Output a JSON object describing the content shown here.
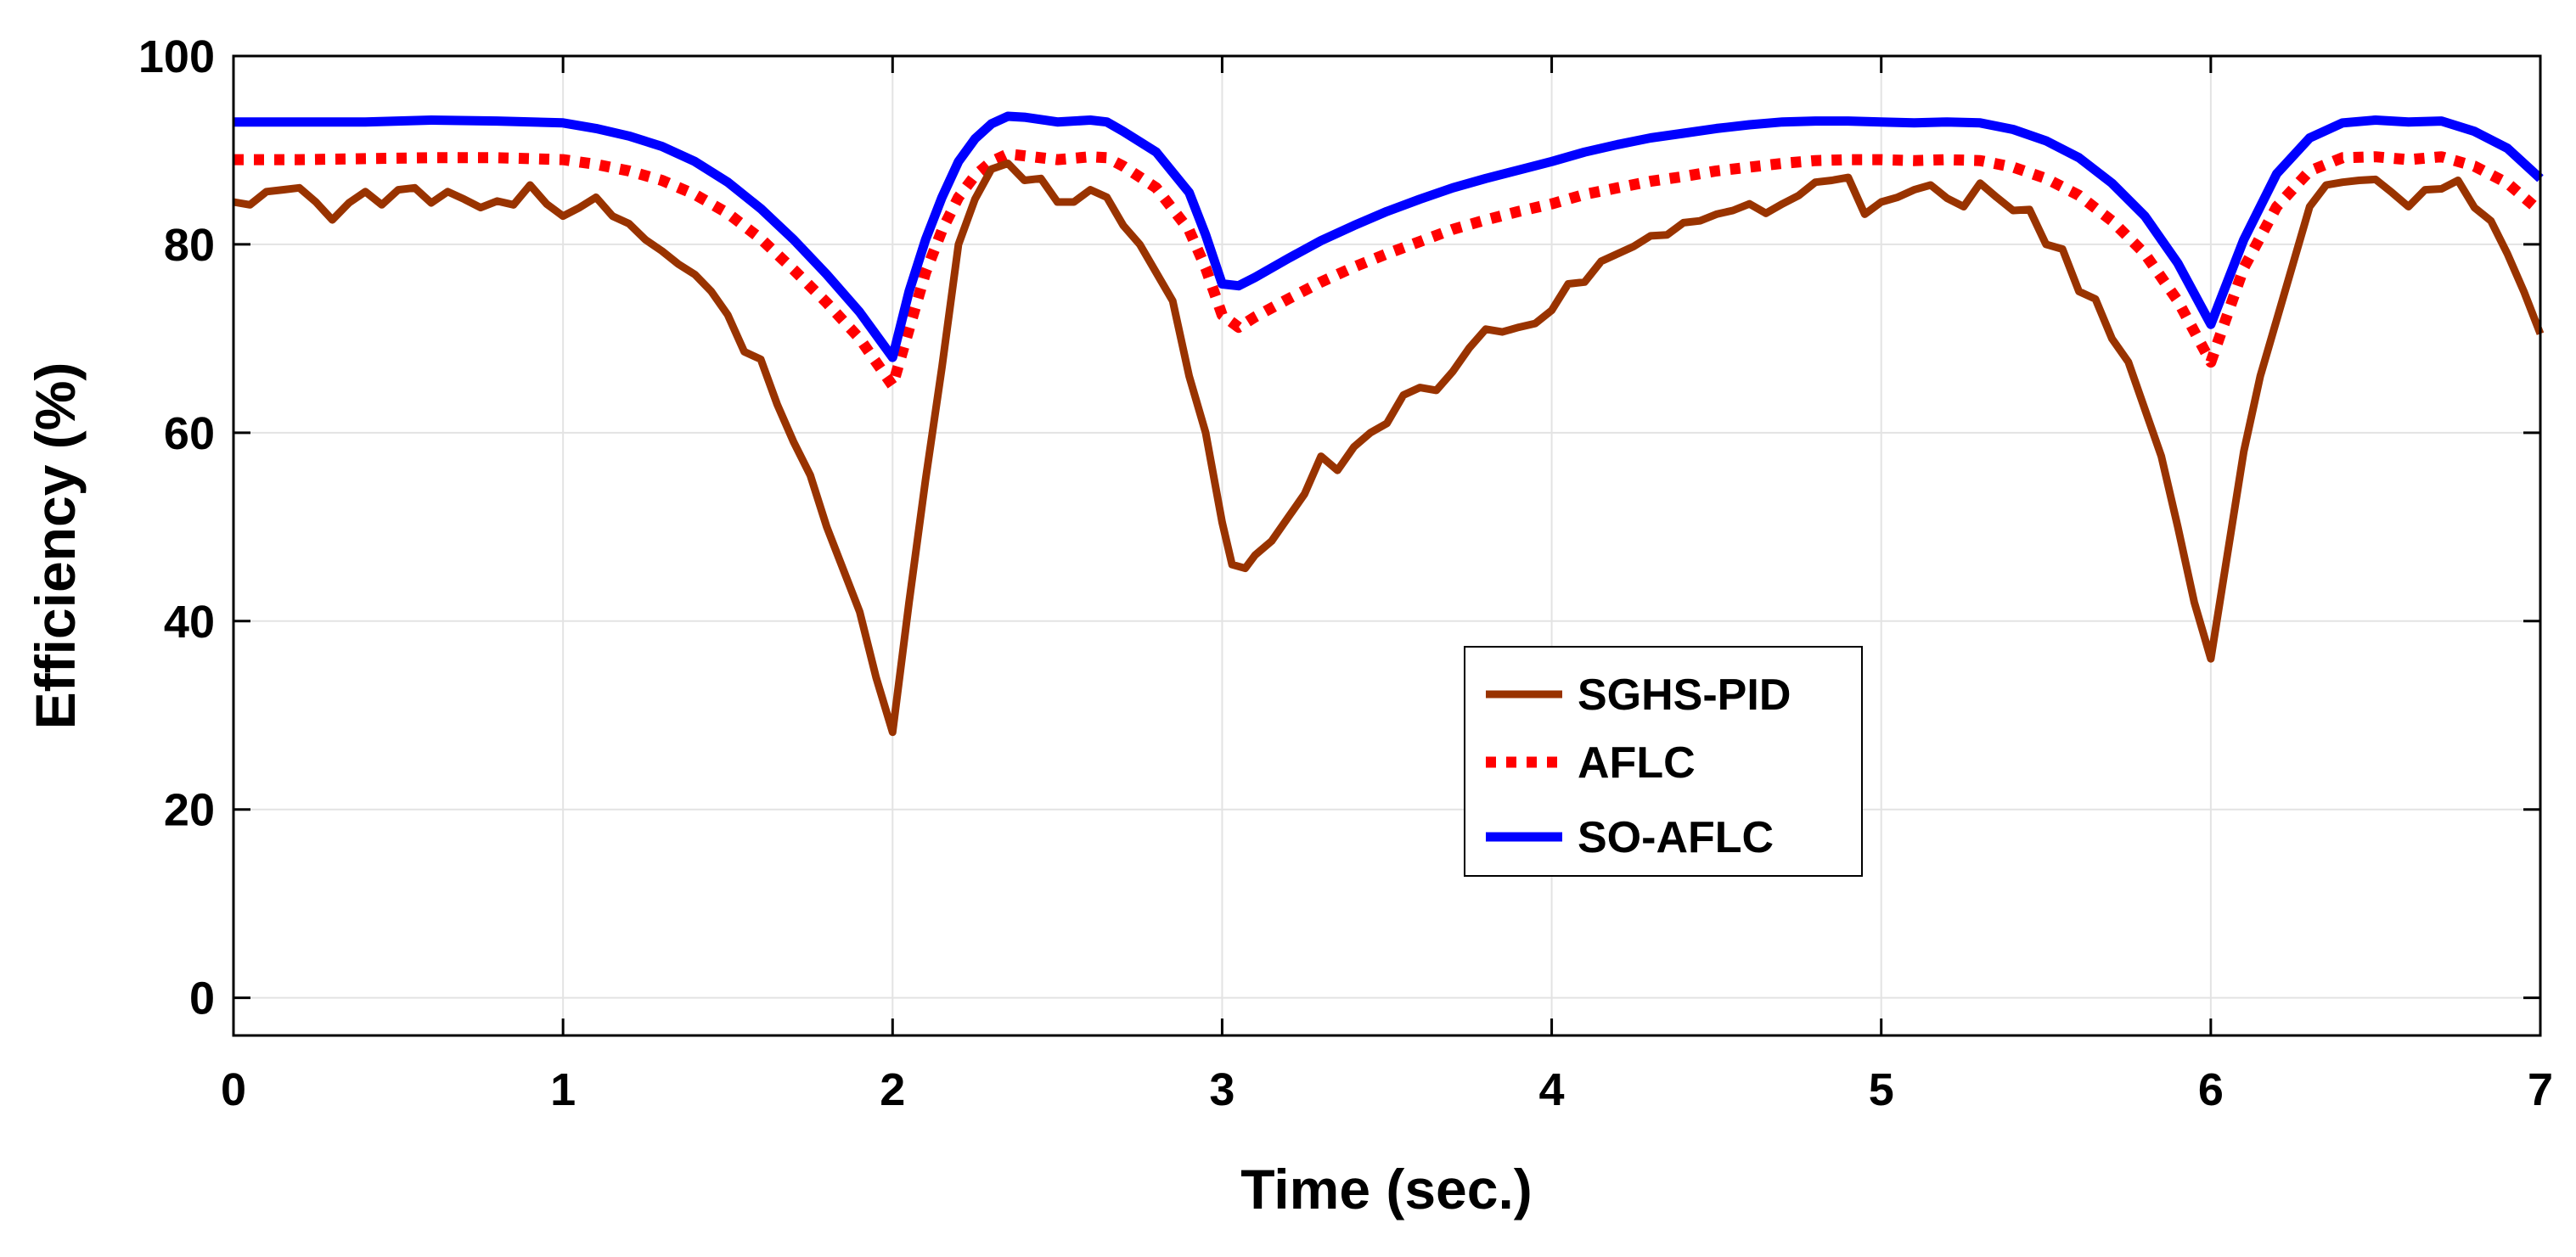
{
  "chart_data": {
    "type": "line",
    "title": "",
    "xlabel": "Time (sec.)",
    "ylabel": "Efficiency (%)",
    "xlim": [
      0,
      7
    ],
    "ylim": [
      -4,
      100
    ],
    "xticks": [
      0,
      1,
      2,
      3,
      4,
      5,
      6,
      7
    ],
    "yticks": [
      0,
      20,
      40,
      60,
      80,
      100
    ],
    "xtick_labels": [
      "0",
      "1",
      "2",
      "3",
      "4",
      "5",
      "6",
      "7"
    ],
    "ytick_labels": [
      "0",
      "20",
      "40",
      "60",
      "80",
      "100"
    ],
    "grid": true,
    "legend_position": "center-right",
    "series": [
      {
        "name": "SGHS-PID",
        "color": "#993300",
        "style": "solid",
        "points": [
          [
            0,
            84.5
          ],
          [
            0.05,
            84.2
          ],
          [
            0.1,
            85.6
          ],
          [
            0.15,
            85.8
          ],
          [
            0.2,
            86
          ],
          [
            0.25,
            84.5
          ],
          [
            0.3,
            82.6
          ],
          [
            0.35,
            84.4
          ],
          [
            0.4,
            85.6
          ],
          [
            0.45,
            84.2
          ],
          [
            0.5,
            85.8
          ],
          [
            0.55,
            86
          ],
          [
            0.6,
            84.4
          ],
          [
            0.65,
            85.6
          ],
          [
            0.7,
            84.8
          ],
          [
            0.75,
            83.9
          ],
          [
            0.8,
            84.6
          ],
          [
            0.85,
            84.2
          ],
          [
            0.9,
            86.3
          ],
          [
            0.95,
            84.3
          ],
          [
            1,
            83
          ],
          [
            1.05,
            83.9
          ],
          [
            1.1,
            85
          ],
          [
            1.15,
            83
          ],
          [
            1.2,
            82.2
          ],
          [
            1.25,
            80.5
          ],
          [
            1.3,
            79.3
          ],
          [
            1.35,
            77.9
          ],
          [
            1.4,
            76.8
          ],
          [
            1.45,
            75
          ],
          [
            1.5,
            72.5
          ],
          [
            1.55,
            68.6
          ],
          [
            1.6,
            67.8
          ],
          [
            1.65,
            63
          ],
          [
            1.7,
            59
          ],
          [
            1.75,
            55.5
          ],
          [
            1.8,
            50
          ],
          [
            1.85,
            45.5
          ],
          [
            1.9,
            41
          ],
          [
            1.95,
            34
          ],
          [
            2,
            28.2
          ],
          [
            2.05,
            42
          ],
          [
            2.1,
            55
          ],
          [
            2.15,
            67
          ],
          [
            2.2,
            80
          ],
          [
            2.25,
            84.8
          ],
          [
            2.3,
            88
          ],
          [
            2.35,
            88.6
          ],
          [
            2.4,
            86.8
          ],
          [
            2.45,
            87
          ],
          [
            2.5,
            84.5
          ],
          [
            2.55,
            84.5
          ],
          [
            2.6,
            85.8
          ],
          [
            2.65,
            85
          ],
          [
            2.7,
            82
          ],
          [
            2.75,
            80
          ],
          [
            2.8,
            77
          ],
          [
            2.85,
            74
          ],
          [
            2.9,
            66
          ],
          [
            2.95,
            60
          ],
          [
            3,
            50.5
          ],
          [
            3.03,
            46
          ],
          [
            3.07,
            45.6
          ],
          [
            3.1,
            47
          ],
          [
            3.15,
            48.5
          ],
          [
            3.2,
            51
          ],
          [
            3.25,
            53.5
          ],
          [
            3.3,
            57.5
          ],
          [
            3.35,
            56
          ],
          [
            3.4,
            58.5
          ],
          [
            3.45,
            60
          ],
          [
            3.5,
            61
          ],
          [
            3.55,
            64
          ],
          [
            3.6,
            64.8
          ],
          [
            3.65,
            64.5
          ],
          [
            3.7,
            66.5
          ],
          [
            3.75,
            69
          ],
          [
            3.8,
            71
          ],
          [
            3.85,
            70.7
          ],
          [
            3.9,
            71.2
          ],
          [
            3.95,
            71.6
          ],
          [
            4,
            73
          ],
          [
            4.05,
            75.8
          ],
          [
            4.1,
            76
          ],
          [
            4.15,
            78.2
          ],
          [
            4.2,
            79
          ],
          [
            4.25,
            79.8
          ],
          [
            4.3,
            80.9
          ],
          [
            4.35,
            81
          ],
          [
            4.4,
            82.3
          ],
          [
            4.45,
            82.5
          ],
          [
            4.5,
            83.2
          ],
          [
            4.55,
            83.6
          ],
          [
            4.6,
            84.3
          ],
          [
            4.65,
            83.3
          ],
          [
            4.7,
            84.3
          ],
          [
            4.75,
            85.2
          ],
          [
            4.8,
            86.6
          ],
          [
            4.85,
            86.8
          ],
          [
            4.9,
            87.1
          ],
          [
            4.95,
            83.2
          ],
          [
            5,
            84.5
          ],
          [
            5.05,
            85
          ],
          [
            5.1,
            85.8
          ],
          [
            5.15,
            86.3
          ],
          [
            5.2,
            84.9
          ],
          [
            5.25,
            84
          ],
          [
            5.3,
            86.5
          ],
          [
            5.35,
            85
          ],
          [
            5.4,
            83.6
          ],
          [
            5.45,
            83.7
          ],
          [
            5.5,
            80
          ],
          [
            5.55,
            79.5
          ],
          [
            5.6,
            75
          ],
          [
            5.65,
            74.2
          ],
          [
            5.7,
            70
          ],
          [
            5.75,
            67.5
          ],
          [
            5.8,
            62.5
          ],
          [
            5.85,
            57.5
          ],
          [
            5.9,
            50
          ],
          [
            5.95,
            42
          ],
          [
            6,
            36
          ],
          [
            6.05,
            47
          ],
          [
            6.1,
            58
          ],
          [
            6.15,
            66
          ],
          [
            6.2,
            72
          ],
          [
            6.25,
            78
          ],
          [
            6.3,
            84
          ],
          [
            6.35,
            86.3
          ],
          [
            6.4,
            86.6
          ],
          [
            6.45,
            86.8
          ],
          [
            6.5,
            86.9
          ],
          [
            6.55,
            85.5
          ],
          [
            6.6,
            84
          ],
          [
            6.65,
            85.8
          ],
          [
            6.7,
            85.9
          ],
          [
            6.75,
            86.8
          ],
          [
            6.8,
            83.9
          ],
          [
            6.85,
            82.5
          ],
          [
            6.9,
            79
          ],
          [
            6.95,
            75
          ],
          [
            7,
            70.5
          ]
        ]
      },
      {
        "name": "AFLC",
        "color": "#ff0000",
        "style": "dotted",
        "points": [
          [
            0,
            89
          ],
          [
            0.2,
            89
          ],
          [
            0.4,
            89.1
          ],
          [
            0.6,
            89.2
          ],
          [
            0.8,
            89.2
          ],
          [
            1,
            89
          ],
          [
            1.1,
            88.5
          ],
          [
            1.2,
            87.8
          ],
          [
            1.3,
            86.8
          ],
          [
            1.4,
            85.3
          ],
          [
            1.5,
            83.3
          ],
          [
            1.6,
            80.6
          ],
          [
            1.7,
            77.3
          ],
          [
            1.8,
            73.8
          ],
          [
            1.9,
            70
          ],
          [
            2,
            65
          ],
          [
            2.05,
            71
          ],
          [
            2.1,
            77
          ],
          [
            2.15,
            81.5
          ],
          [
            2.2,
            85
          ],
          [
            2.25,
            87.3
          ],
          [
            2.3,
            88.8
          ],
          [
            2.35,
            89.6
          ],
          [
            2.4,
            89.4
          ],
          [
            2.5,
            89
          ],
          [
            2.6,
            89.3
          ],
          [
            2.65,
            89.2
          ],
          [
            2.7,
            88.3
          ],
          [
            2.8,
            86
          ],
          [
            2.9,
            81.5
          ],
          [
            2.95,
            77.5
          ],
          [
            3,
            72.5
          ],
          [
            3.05,
            71.2
          ],
          [
            3.1,
            72.3
          ],
          [
            3.2,
            74.2
          ],
          [
            3.3,
            76
          ],
          [
            3.4,
            77.6
          ],
          [
            3.5,
            79
          ],
          [
            3.6,
            80.3
          ],
          [
            3.7,
            81.6
          ],
          [
            3.8,
            82.6
          ],
          [
            3.9,
            83.5
          ],
          [
            4,
            84.3
          ],
          [
            4.1,
            85.3
          ],
          [
            4.2,
            86
          ],
          [
            4.3,
            86.7
          ],
          [
            4.4,
            87.2
          ],
          [
            4.5,
            87.8
          ],
          [
            4.6,
            88.2
          ],
          [
            4.7,
            88.6
          ],
          [
            4.8,
            88.9
          ],
          [
            4.9,
            89
          ],
          [
            5,
            89
          ],
          [
            5.1,
            88.9
          ],
          [
            5.2,
            89
          ],
          [
            5.3,
            88.9
          ],
          [
            5.4,
            88.2
          ],
          [
            5.5,
            87
          ],
          [
            5.6,
            85.2
          ],
          [
            5.7,
            82.5
          ],
          [
            5.8,
            79
          ],
          [
            5.9,
            74
          ],
          [
            6,
            67.5
          ],
          [
            6.05,
            72.5
          ],
          [
            6.1,
            77.5
          ],
          [
            6.2,
            84
          ],
          [
            6.3,
            87.8
          ],
          [
            6.4,
            89.2
          ],
          [
            6.5,
            89.3
          ],
          [
            6.6,
            89
          ],
          [
            6.7,
            89.3
          ],
          [
            6.8,
            88.3
          ],
          [
            6.9,
            86.5
          ],
          [
            7,
            83.5
          ]
        ]
      },
      {
        "name": "SO-AFLC",
        "color": "#0000ff",
        "style": "solid",
        "points": [
          [
            0,
            93
          ],
          [
            0.2,
            93
          ],
          [
            0.4,
            93
          ],
          [
            0.6,
            93.2
          ],
          [
            0.8,
            93.1
          ],
          [
            1,
            92.9
          ],
          [
            1.1,
            92.3
          ],
          [
            1.2,
            91.5
          ],
          [
            1.3,
            90.4
          ],
          [
            1.4,
            88.8
          ],
          [
            1.5,
            86.6
          ],
          [
            1.6,
            83.8
          ],
          [
            1.7,
            80.5
          ],
          [
            1.8,
            76.8
          ],
          [
            1.9,
            72.8
          ],
          [
            2,
            68
          ],
          [
            2.05,
            75
          ],
          [
            2.1,
            80.5
          ],
          [
            2.15,
            85
          ],
          [
            2.2,
            88.8
          ],
          [
            2.25,
            91.2
          ],
          [
            2.3,
            92.8
          ],
          [
            2.35,
            93.6
          ],
          [
            2.4,
            93.5
          ],
          [
            2.5,
            93
          ],
          [
            2.6,
            93.2
          ],
          [
            2.65,
            93
          ],
          [
            2.7,
            92
          ],
          [
            2.8,
            89.8
          ],
          [
            2.9,
            85.5
          ],
          [
            2.95,
            81
          ],
          [
            3,
            75.8
          ],
          [
            3.05,
            75.6
          ],
          [
            3.1,
            76.5
          ],
          [
            3.2,
            78.5
          ],
          [
            3.3,
            80.4
          ],
          [
            3.4,
            82
          ],
          [
            3.5,
            83.5
          ],
          [
            3.6,
            84.8
          ],
          [
            3.7,
            86
          ],
          [
            3.8,
            87
          ],
          [
            3.9,
            87.9
          ],
          [
            4,
            88.8
          ],
          [
            4.1,
            89.8
          ],
          [
            4.2,
            90.6
          ],
          [
            4.3,
            91.3
          ],
          [
            4.4,
            91.8
          ],
          [
            4.5,
            92.3
          ],
          [
            4.6,
            92.7
          ],
          [
            4.7,
            93
          ],
          [
            4.8,
            93.1
          ],
          [
            4.9,
            93.1
          ],
          [
            5,
            93
          ],
          [
            5.1,
            92.9
          ],
          [
            5.2,
            93
          ],
          [
            5.3,
            92.9
          ],
          [
            5.4,
            92.2
          ],
          [
            5.5,
            91
          ],
          [
            5.6,
            89.2
          ],
          [
            5.7,
            86.5
          ],
          [
            5.8,
            83
          ],
          [
            5.9,
            78
          ],
          [
            6,
            71.5
          ],
          [
            6.05,
            76
          ],
          [
            6.1,
            80.5
          ],
          [
            6.2,
            87.5
          ],
          [
            6.3,
            91.3
          ],
          [
            6.4,
            92.9
          ],
          [
            6.5,
            93.2
          ],
          [
            6.6,
            93
          ],
          [
            6.7,
            93.1
          ],
          [
            6.8,
            92
          ],
          [
            6.9,
            90.2
          ],
          [
            7,
            87
          ]
        ]
      }
    ]
  }
}
